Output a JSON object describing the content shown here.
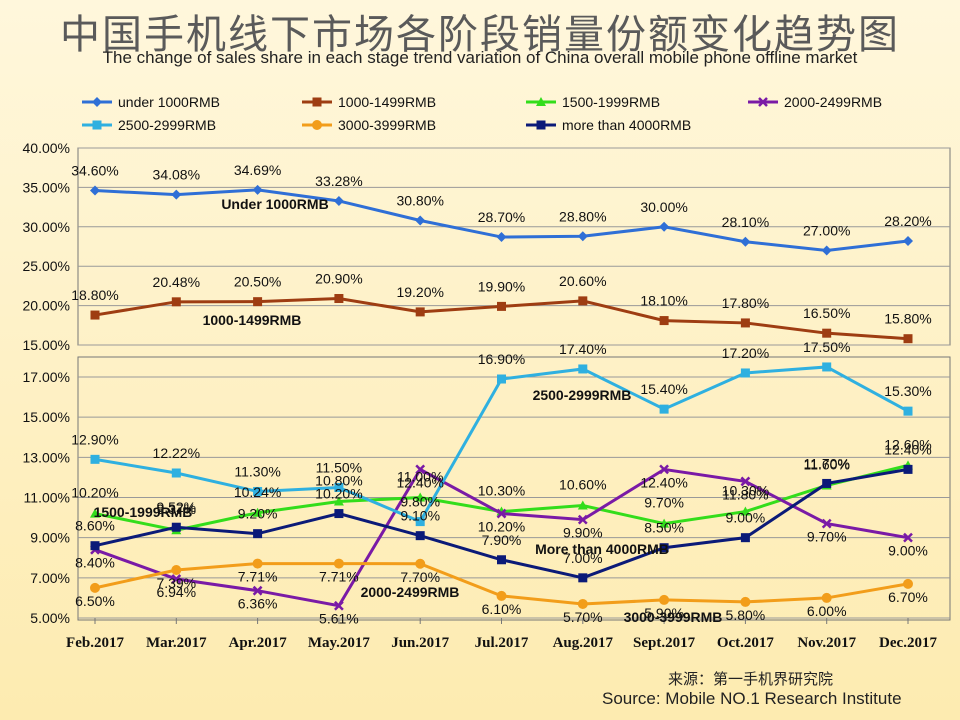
{
  "title_cn": "中国手机线下市场各阶段销量份额变化趋势图",
  "title_en": "The change of sales share in each stage trend variation of China overall mobile phone offline market",
  "source_cn": "来源：第一手机界研究院",
  "source_en": "Source: Mobile NO.1 Research Institute",
  "chart_data": {
    "type": "line",
    "categories": [
      "Feb.2017",
      "Mar.2017",
      "Apr.2017",
      "May.2017",
      "Jun.2017",
      "Jul.2017",
      "Aug.2017",
      "Sept.2017",
      "Oct.2017",
      "Nov.2017",
      "Dec.2017"
    ],
    "legend_position": "top",
    "series": [
      {
        "name": "under 1000RMB",
        "color": "#2f6fd6",
        "marker": "diamond",
        "panel": "top",
        "values": [
          34.6,
          34.08,
          34.69,
          33.28,
          30.8,
          28.7,
          28.8,
          30.0,
          28.1,
          27.0,
          28.2
        ]
      },
      {
        "name": "1000-1499RMB",
        "color": "#9e3d12",
        "marker": "square",
        "panel": "top",
        "values": [
          18.8,
          20.48,
          20.5,
          20.9,
          19.2,
          19.9,
          20.6,
          18.1,
          17.8,
          16.5,
          15.8
        ]
      },
      {
        "name": "1500-1999RMB",
        "color": "#33dd1b",
        "marker": "triangle",
        "panel": "bottom",
        "values": [
          10.2,
          9.37,
          10.24,
          10.8,
          11.0,
          10.3,
          10.6,
          9.7,
          10.3,
          11.6,
          12.6
        ]
      },
      {
        "name": "2000-2499RMB",
        "color": "#7a1aa6",
        "marker": "x",
        "panel": "bottom",
        "values": [
          8.4,
          6.94,
          6.36,
          5.61,
          12.4,
          10.2,
          9.9,
          12.4,
          11.8,
          9.7,
          9.0
        ]
      },
      {
        "name": "2500-2999RMB",
        "color": "#2fb0e0",
        "marker": "square",
        "panel": "bottom",
        "values": [
          12.9,
          12.22,
          11.3,
          11.5,
          9.8,
          16.9,
          17.4,
          15.4,
          17.2,
          17.5,
          15.3
        ]
      },
      {
        "name": "3000-3999RMB",
        "color": "#f29d1a",
        "marker": "circle",
        "panel": "bottom",
        "values": [
          6.5,
          7.39,
          7.71,
          7.71,
          7.7,
          6.1,
          5.7,
          5.9,
          5.8,
          6.0,
          6.7
        ]
      },
      {
        "name": "more than 4000RMB",
        "color": "#0b1a78",
        "marker": "square",
        "panel": "bottom",
        "values": [
          8.6,
          9.52,
          9.2,
          10.2,
          9.1,
          7.9,
          7.0,
          8.5,
          9.0,
          11.7,
          12.4
        ]
      }
    ],
    "data_labels": [
      [
        "34.60%",
        "34.08%",
        "34.69%",
        "33.28%",
        "30.80%",
        "28.70%",
        "28.80%",
        "30.00%",
        "28.10%",
        "27.00%",
        "28.20%"
      ],
      [
        "18.80%",
        "20.48%",
        "20.50%",
        "20.90%",
        "19.20%",
        "19.90%",
        "20.60%",
        "18.10%",
        "17.80%",
        "16.50%",
        "15.80%"
      ],
      [
        "10.20%",
        "9.37%",
        "10.24%",
        "10.80%",
        "11.00%",
        "10.30%",
        "10.60%",
        "9.70%",
        "10.30%",
        "11.60%",
        "12.60%"
      ],
      [
        "8.40%",
        "6.94%",
        "6.36%",
        "5.61%",
        "12.40%",
        "10.20%",
        "9.90%",
        "12.40%",
        "11.80%",
        "9.70%",
        "9.00%"
      ],
      [
        "12.90%",
        "12.22%",
        "11.30%",
        "11.50%",
        "9.80%",
        "16.90%",
        "17.40%",
        "15.40%",
        "17.20%",
        "17.50%",
        "15.30%"
      ],
      [
        "6.50%",
        "7.39%",
        "7.71%",
        "7.71%",
        "7.70%",
        "6.10%",
        "5.70%",
        "5.90%",
        "5.80%",
        "6.00%",
        "6.70%"
      ],
      [
        "8.60%",
        "9.52%",
        "9.20%",
        "10.20%",
        "9.10%",
        "7.90%",
        "7.00%",
        "8.50%",
        "9.00%",
        "11.70%",
        "12.40%"
      ]
    ],
    "top_panel": {
      "ylim": [
        15,
        40
      ],
      "ticks": [
        "40.00%",
        "35.00%",
        "30.00%",
        "25.00%",
        "20.00%",
        "15.00%"
      ]
    },
    "bottom_panel": {
      "ylim": [
        5,
        18
      ],
      "ticks": [
        "17.00%",
        "15.00%",
        "13.00%",
        "11.00%",
        "9.00%",
        "7.00%",
        "5.00%"
      ]
    },
    "grid": true,
    "annotations": [
      "Under 1000RMB",
      "1000-1499RMB",
      "1500-1999RMB",
      "2500-2999RMB",
      "More than 4000RMB",
      "2000-2499RMB",
      "3000-3999RMB"
    ]
  }
}
